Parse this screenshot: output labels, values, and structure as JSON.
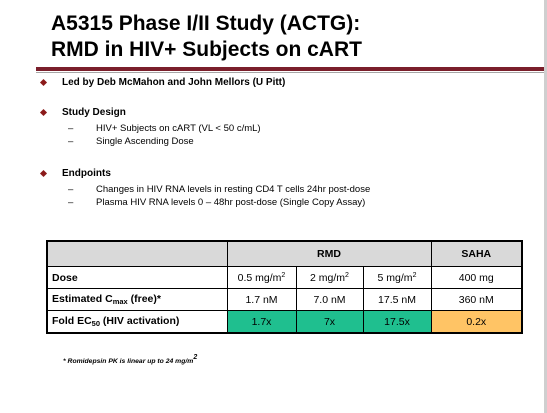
{
  "title": {
    "line1": "A5315 Phase I/II Study (ACTG):",
    "line2": "RMD in HIV+ Subjects on cART"
  },
  "colors": {
    "accent_rule": "#7a1f2b",
    "bullet": "#8b1a1a",
    "header_fill": "#d9d9d9",
    "rmd_fold_fill": "#1fbf8f",
    "saha_fold_fill": "#ffc465"
  },
  "bullets": [
    {
      "text": "Led by Deb McMahon and John Mellors (U Pitt)",
      "subitems": []
    },
    {
      "text": "Study Design",
      "subitems": [
        "HIV+ Subjects on cART (VL < 50 c/mL)",
        "Single Ascending Dose"
      ]
    },
    {
      "text": "Endpoints",
      "subitems": [
        "Changes in HIV RNA levels in resting CD4 T cells 24hr post-dose",
        "Plasma HIV RNA levels 0 – 48hr post-dose (Single Copy Assay)"
      ]
    }
  ],
  "dash": "–",
  "table": {
    "header": {
      "rmd": "RMD",
      "saha": "SAHA"
    },
    "dose": {
      "label": "Dose",
      "values": [
        "0.5 mg/m",
        "2 mg/m",
        "5 mg/m"
      ],
      "sup": "2",
      "saha": "400 mg"
    },
    "cmax": {
      "label_pre": "Estimated C",
      "label_sub": "max",
      "label_post": " (free)*",
      "values": [
        "1.7 nM",
        "7.0 nM",
        "17.5 nM"
      ],
      "saha": "360 nM"
    },
    "fold": {
      "label_pre": "Fold EC",
      "label_sub": "50",
      "label_post": " (HIV activation)",
      "values": [
        "1.7x",
        "7x",
        "17.5x"
      ],
      "saha": "0.2x"
    }
  },
  "footnote": {
    "text": "* Romidepsin PK is linear up to 24 mg/m",
    "sup": "2"
  }
}
